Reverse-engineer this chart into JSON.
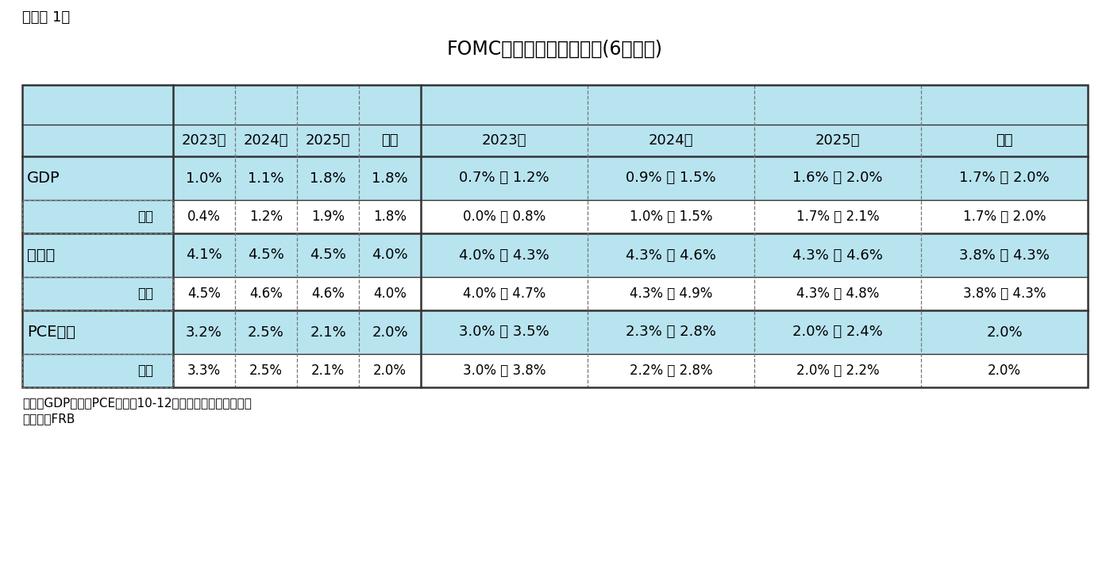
{
  "title": "FOMC参加者の経済見通し(6月会合)",
  "subtitle_label": "（図表 1）",
  "note1": "（注）GDPとコアPCE価格は10-12月期の前年同期比伸び率",
  "note2": "（資料）FRB",
  "header_group1": [
    "2023年",
    "2024年",
    "2025年",
    "長期"
  ],
  "header_group2": [
    "2023年",
    "2024年",
    "2025年",
    "長期"
  ],
  "rows": [
    {
      "label": "GDP",
      "sub_label": "前回",
      "is_main": true,
      "vals": [
        "1.0%",
        "1.1%",
        "1.8%",
        "1.8%"
      ],
      "ranges": [
        "0.7% － 1.2%",
        "0.9% － 1.5%",
        "1.6% － 2.0%",
        "1.7% － 2.0%"
      ],
      "sub_vals": [
        "0.4%",
        "1.2%",
        "1.9%",
        "1.8%"
      ],
      "sub_ranges": [
        "0.0% － 0.8%",
        "1.0% － 1.5%",
        "1.7% － 2.1%",
        "1.7% － 2.0%"
      ]
    },
    {
      "label": "失業率",
      "sub_label": "前回",
      "is_main": true,
      "vals": [
        "4.1%",
        "4.5%",
        "4.5%",
        "4.0%"
      ],
      "ranges": [
        "4.0% － 4.3%",
        "4.3% － 4.6%",
        "4.3% － 4.6%",
        "3.8% － 4.3%"
      ],
      "sub_vals": [
        "4.5%",
        "4.6%",
        "4.6%",
        "4.0%"
      ],
      "sub_ranges": [
        "4.0% － 4.7%",
        "4.3% － 4.9%",
        "4.3% － 4.8%",
        "3.8% － 4.3%"
      ]
    },
    {
      "label": "PCE価格",
      "sub_label": "前回",
      "is_main": true,
      "vals": [
        "3.2%",
        "2.5%",
        "2.1%",
        "2.0%"
      ],
      "ranges": [
        "3.0% － 3.5%",
        "2.3% － 2.8%",
        "2.0% － 2.4%",
        "2.0%"
      ],
      "sub_vals": [
        "3.3%",
        "2.5%",
        "2.1%",
        "2.0%"
      ],
      "sub_ranges": [
        "3.0% － 3.8%",
        "2.2% － 2.8%",
        "2.0% － 2.2%",
        "2.0%"
      ]
    }
  ],
  "bg_light": "#b8e4f0",
  "bg_white": "#ffffff",
  "border_dark": "#333333",
  "border_light": "#777777",
  "text_color": "#000000",
  "title_fontsize": 17,
  "header_fontsize": 13,
  "cell_fontsize": 13,
  "label_fontsize": 14,
  "sub_fontsize": 12,
  "note_fontsize": 11
}
